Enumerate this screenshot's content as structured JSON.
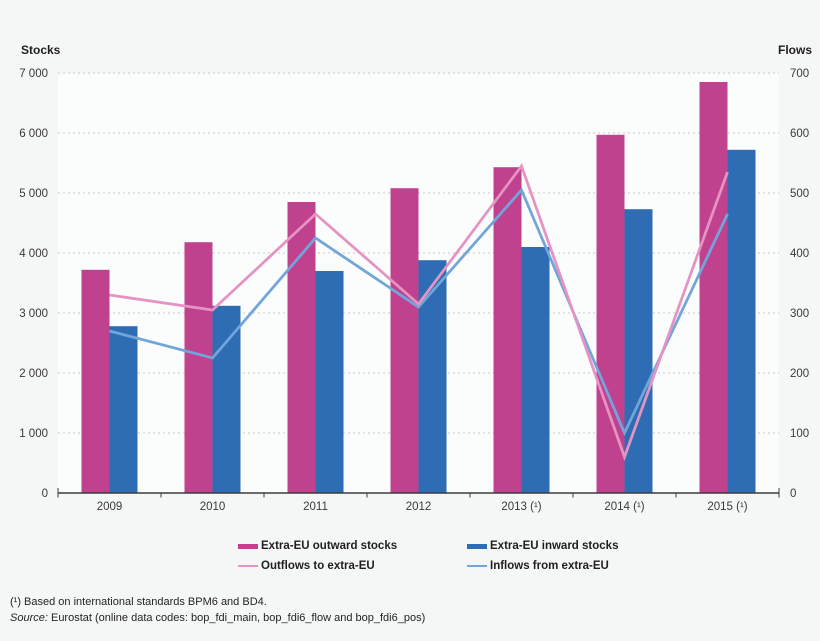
{
  "chart_data": {
    "type": "bar+line combo",
    "categories": [
      "2009",
      "2010",
      "2011",
      "2012",
      "2013 (¹)",
      "2014 (¹)",
      "2015 (¹)"
    ],
    "left_axis": {
      "title": "Stocks",
      "ticks": [
        "7 000",
        "6 000",
        "5 000",
        "4 000",
        "3 000",
        "2 000",
        "1 000",
        "0"
      ],
      "min": 0,
      "max": 7000
    },
    "right_axis": {
      "title": "Flows",
      "ticks": [
        "700",
        "600",
        "500",
        "400",
        "300",
        "200",
        "100",
        "0"
      ],
      "min": 0,
      "max": 700
    },
    "grid": "horizontal dashed, legend below chart",
    "series": [
      {
        "name": "Extra-EU outward stocks",
        "type": "bar",
        "axis": "left",
        "color": "#c0428f",
        "values": [
          3720,
          4180,
          4850,
          5080,
          5430,
          5970,
          6850
        ]
      },
      {
        "name": "Extra-EU inward stocks",
        "type": "bar",
        "axis": "left",
        "color": "#2e6db4",
        "values": [
          2780,
          3120,
          3700,
          3880,
          4100,
          4730,
          5720
        ]
      },
      {
        "name": "Outflows to extra-EU",
        "type": "line",
        "axis": "right",
        "color": "#e593c2",
        "values": [
          330,
          305,
          465,
          315,
          545,
          60,
          535
        ]
      },
      {
        "name": "Inflows from extra-EU",
        "type": "line",
        "axis": "right",
        "color": "#72a5da",
        "values": [
          270,
          225,
          425,
          310,
          505,
          100,
          465
        ]
      }
    ]
  },
  "footnotes": {
    "note1": "(¹) Based on international standards BPM6 and BD4.",
    "source_label": "Source:",
    "source_rest": " Eurostat (online data codes: bop_fdi_main, bop_fdi6_flow and bop_fdi6_pos)"
  }
}
